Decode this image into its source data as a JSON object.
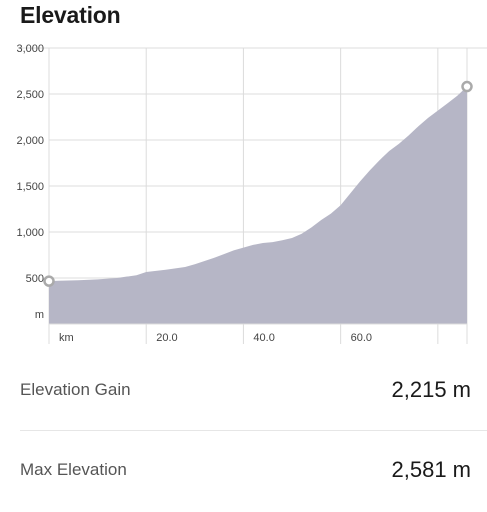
{
  "page": {
    "title": "Elevation"
  },
  "chart_data": {
    "type": "area",
    "title": "",
    "y_unit": "m",
    "x_unit": "km",
    "ylim": [
      0,
      3000
    ],
    "xlim": [
      0,
      86
    ],
    "y_ticks": [
      {
        "value": 500,
        "label": "500"
      },
      {
        "value": 1000,
        "label": "1,000"
      },
      {
        "value": 1500,
        "label": "1,500"
      },
      {
        "value": 2000,
        "label": "2,000"
      },
      {
        "value": 2500,
        "label": "2,500"
      },
      {
        "value": 3000,
        "label": "3,000"
      }
    ],
    "x_ticks": [
      {
        "value": 20,
        "label": "20.0"
      },
      {
        "value": 40,
        "label": "40.0"
      },
      {
        "value": 60,
        "label": "60.0"
      }
    ],
    "x_gridlines": [
      0,
      20,
      40,
      60,
      80,
      86
    ],
    "series": [
      {
        "x": [
          0,
          2,
          6,
          10,
          14,
          18,
          20,
          24,
          28,
          30,
          34,
          38,
          42,
          44,
          46,
          48,
          50,
          52,
          54,
          56,
          58,
          60,
          62,
          64,
          66,
          68,
          70,
          72,
          74,
          76,
          78,
          80,
          82,
          84,
          86
        ],
        "y": [
          466,
          470,
          475,
          485,
          500,
          530,
          565,
          590,
          620,
          650,
          720,
          800,
          860,
          880,
          890,
          910,
          935,
          980,
          1050,
          1130,
          1200,
          1290,
          1420,
          1550,
          1670,
          1780,
          1880,
          1960,
          2050,
          2150,
          2240,
          2320,
          2400,
          2480,
          2581
        ]
      }
    ],
    "markers": [
      {
        "x": 0,
        "y": 466
      },
      {
        "x": 86,
        "y": 2581
      }
    ],
    "colors": {
      "fill": "#b6b6c6",
      "grid": "#dcdcdc",
      "tick_text": "#444444",
      "marker_stroke": "#aaaaaa"
    }
  },
  "stats": [
    {
      "label": "Elevation Gain",
      "value": "2,215 m"
    },
    {
      "label": "Max Elevation",
      "value": "2,581 m"
    }
  ]
}
